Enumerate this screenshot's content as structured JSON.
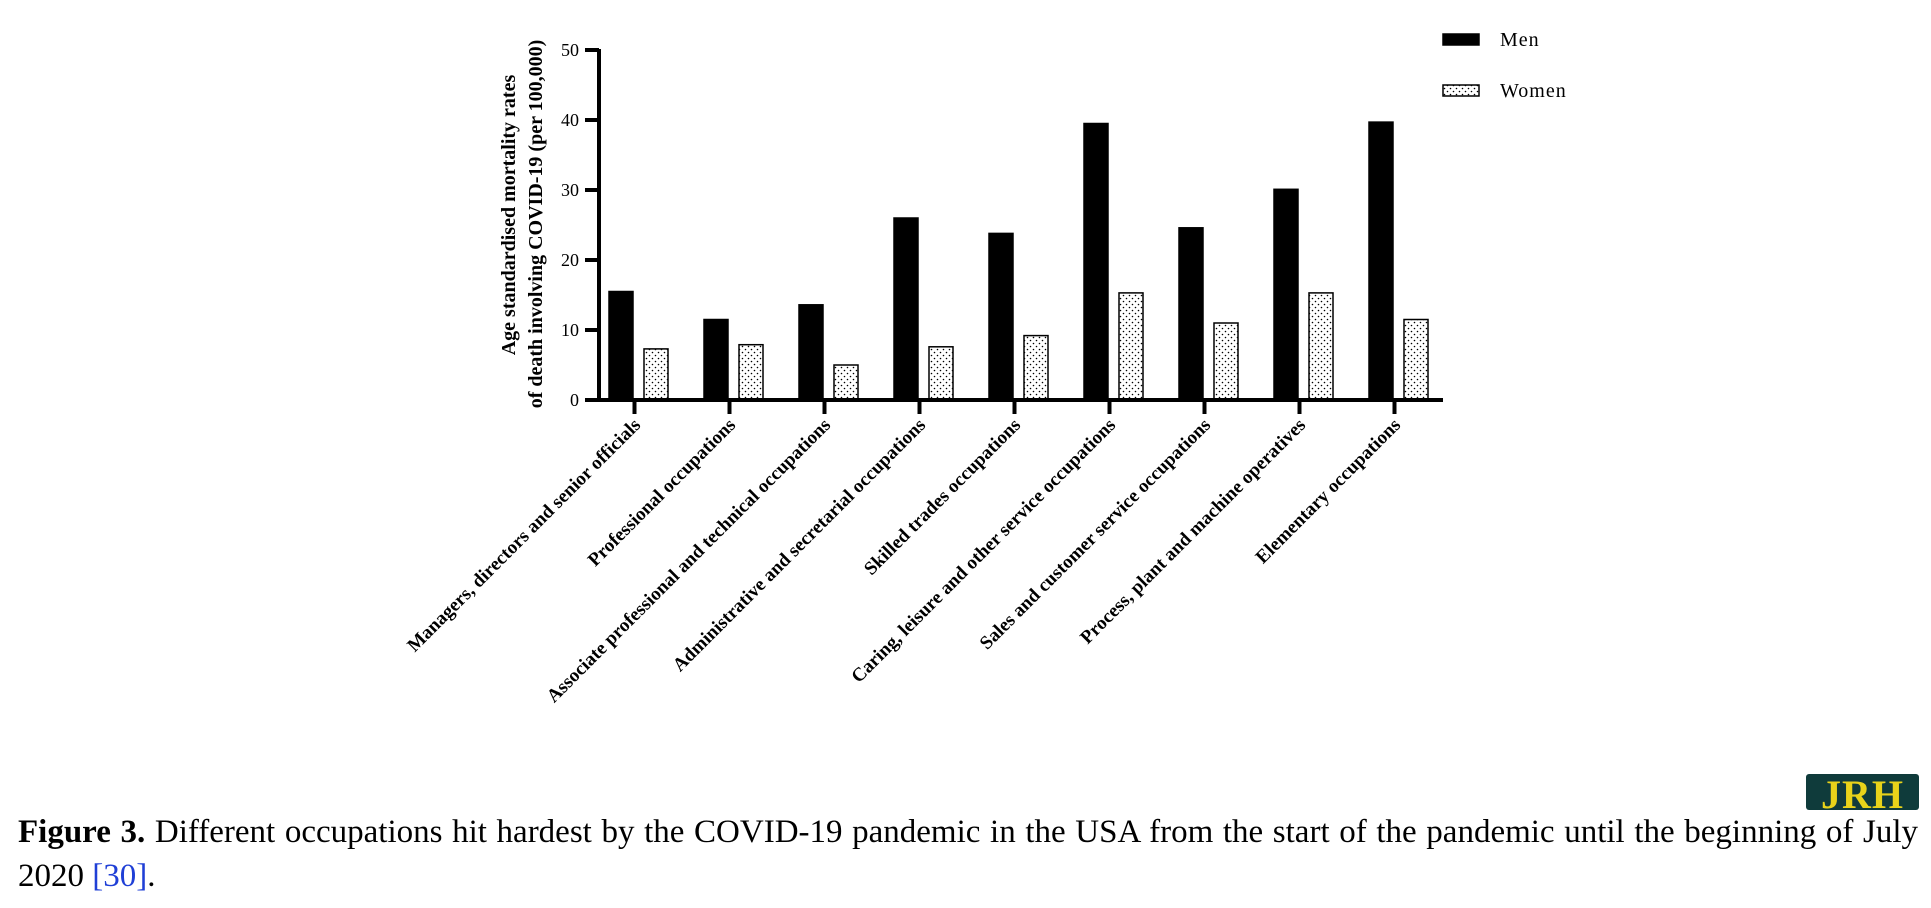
{
  "chart_data": {
    "type": "bar",
    "ylabel_lines": [
      "Age standardised mortality rates",
      "of death involving COVID-19 (per 100,000)"
    ],
    "ylim": [
      0,
      50
    ],
    "yticks": [
      0,
      10,
      20,
      30,
      40,
      50
    ],
    "categories": [
      "Managers, directors and senior officials",
      "Professional occupations",
      "Associate professional and technical occupations",
      "Administrative and secretarial occupations",
      "Skilled trades occupations",
      "Caring, leisure and other service occupations",
      "Sales and customer service occupations",
      "Process, plant and machine operatives",
      "Elementary occupations"
    ],
    "series": [
      {
        "name": "Men",
        "fill": "#000000",
        "pattern": "solid",
        "values": [
          15.5,
          11.5,
          13.6,
          26.0,
          23.8,
          39.5,
          24.6,
          30.1,
          39.7
        ]
      },
      {
        "name": "Women",
        "fill": "#ffffff",
        "pattern": "dotted",
        "values": [
          7.3,
          7.9,
          5.0,
          7.6,
          9.2,
          15.3,
          11.0,
          15.3,
          11.5
        ]
      }
    ],
    "legend_position": "top-right",
    "grid": false
  },
  "caption": {
    "label": "Figure 3.",
    "text": " Different occupations hit hardest by the COVID-19 pandemic in the USA from the start of the pandemic until the beginning of July 2020 ",
    "ref": "[30]",
    "end": "."
  },
  "logo": {
    "text": "JRH",
    "bg": "#0f3b3b",
    "fg": "#e8d31a"
  }
}
